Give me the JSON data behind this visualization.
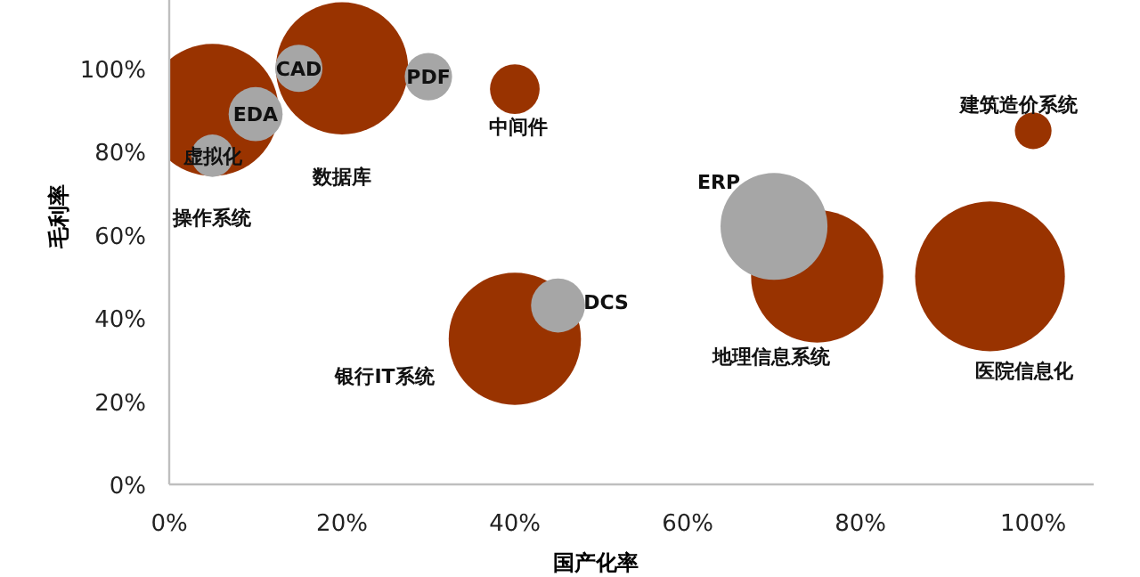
{
  "chart_data": {
    "type": "bubble",
    "xlabel": "国产化率",
    "ylabel": "毛利率",
    "series": [
      {
        "color": "#993300",
        "x": [
          5,
          20,
          40,
          40,
          75,
          95,
          100
        ],
        "values": [
          90,
          100,
          95,
          35,
          50,
          50,
          85
        ],
        "sizes": [
          0.78,
          0.78,
          0.11,
          0.78,
          0.78,
          1,
          0.06
        ]
      },
      {
        "color": "#a6a6a6",
        "x": [
          5,
          10,
          15,
          30,
          45,
          70
        ],
        "values": [
          79,
          89,
          100,
          98,
          43,
          62
        ],
        "sizes": [
          0.08,
          0.13,
          0.1,
          0.1,
          0.13,
          0.51
        ]
      }
    ],
    "annotations": [
      "操作系统",
      {
        "text": "虚拟化",
        "x": 5,
        "y": 79
      },
      {
        "text": "EDA",
        "x": 10,
        "y": 89
      },
      {
        "text": "CAD",
        "x": 15,
        "y": 100
      },
      "数据库",
      {
        "text": "PDF",
        "x": 30,
        "y": 98
      },
      {
        "text": "中间件",
        "x": 40,
        "y": 95
      },
      "银行IT系统",
      {
        "text": "DCS",
        "x": 45,
        "y": 43
      },
      {
        "text": "ERP",
        "x": 70,
        "y": 62
      },
      "地理信息系统",
      "医院信息化",
      {
        "text": "建筑造价系统",
        "x": 100,
        "y": 85
      }
    ],
    "xlim": [
      0,
      107
    ],
    "ylim": [
      0,
      116
    ],
    "xticks": [
      {
        "value": 0,
        "label": "0%"
      },
      {
        "value": 20,
        "label": "20%"
      },
      {
        "value": 40,
        "label": "40%"
      },
      {
        "value": 60,
        "label": "60%"
      },
      {
        "value": 80,
        "label": "80%"
      },
      {
        "value": 100,
        "label": "100%"
      }
    ],
    "yticks": [
      {
        "value": 0,
        "label": "0%"
      },
      {
        "value": 20,
        "label": "20%"
      },
      {
        "value": 40,
        "label": "40%"
      },
      {
        "value": 60,
        "label": "60%"
      },
      {
        "value": 80,
        "label": "80%"
      },
      {
        "value": 100,
        "label": "100%"
      }
    ],
    "grid": false
  }
}
